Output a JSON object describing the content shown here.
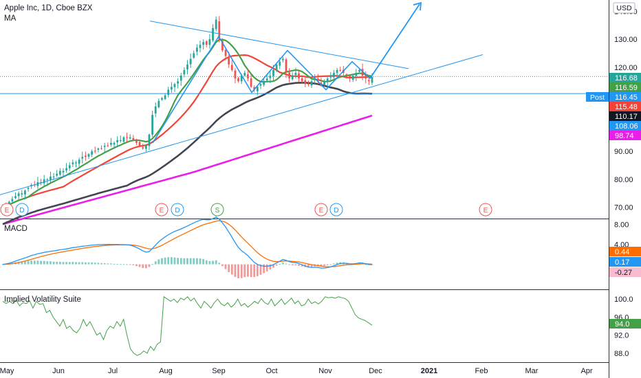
{
  "header": {
    "symbol_title": "Apple Inc, 1D, Cboe BZX",
    "ma_label": "MA",
    "currency": "USD"
  },
  "colors": {
    "up": "#26a69a",
    "down": "#ef5350",
    "ma_green": "#43a047",
    "ma_red": "#f44336",
    "ma_black": "#434651",
    "ma_magenta": "#e91ee9",
    "drawing_blue": "#2196f3",
    "macd_blue": "#2196f3",
    "signal_orange": "#ff6d00",
    "iv_green": "#43a047"
  },
  "chart_data": [
    {
      "type": "candlestick",
      "title": "Apple Inc, 1D, Cboe BZX",
      "pane": "price",
      "x_tick_labels": [
        "May",
        "Jun",
        "Jul",
        "Aug",
        "Sep",
        "Oct",
        "Nov",
        "Dec",
        "2021",
        "Feb",
        "Mar",
        "Apr"
      ],
      "y_tick_labels": [
        "140.00",
        "130.00",
        "120.00",
        "90.00",
        "80.00",
        "70.00"
      ],
      "y_range": [
        66,
        144
      ],
      "close_series": [
        70,
        71,
        72,
        73,
        74,
        75,
        75,
        76,
        77,
        78,
        78,
        79,
        79,
        80,
        80,
        81,
        81,
        82,
        83,
        83,
        84,
        85,
        86,
        86,
        87,
        88,
        88,
        89,
        90,
        90,
        91,
        91,
        92,
        92,
        93,
        93,
        94,
        94,
        95,
        95,
        95,
        94,
        93,
        92,
        91,
        92,
        96,
        103,
        106,
        108,
        109,
        110,
        112,
        113,
        114,
        115,
        117,
        119,
        121,
        123,
        125,
        127,
        128,
        129,
        128,
        130,
        134,
        137,
        130,
        126,
        124,
        121,
        119,
        116,
        115,
        117,
        118,
        116,
        113,
        112,
        113,
        114,
        115,
        116,
        117,
        119,
        121,
        122,
        123,
        118,
        116,
        117,
        118,
        116,
        115,
        114,
        114,
        115,
        116,
        115,
        114,
        115,
        116,
        117,
        118,
        119,
        119,
        118,
        117,
        116,
        117,
        118,
        119,
        117,
        116,
        115,
        116.5
      ],
      "moving_averages": [
        {
          "label_value": "116.59",
          "color": "#43a047"
        },
        {
          "label_value": "115.48",
          "color": "#f44336"
        },
        {
          "label_value": "110.17",
          "color": "#434651"
        },
        {
          "label_value": "98.74",
          "color": "#e91ee9"
        }
      ],
      "price_labels": [
        {
          "value": "116.68",
          "color": "#26a69a"
        },
        {
          "value": "116.59",
          "color": "#43a047"
        },
        {
          "value": "116.45",
          "color": "#2196f3"
        },
        {
          "value": "115.48",
          "color": "#f44336"
        },
        {
          "value": "110.17",
          "color": "#131722"
        },
        {
          "value": "108.06",
          "color": "#2196f3"
        },
        {
          "value": "98.74",
          "color": "#e91ee9"
        }
      ],
      "post_label": "Post",
      "events": [
        {
          "letter": "E",
          "kind": "earnings",
          "color": "#ef5350"
        },
        {
          "letter": "D",
          "kind": "dividend",
          "color": "#2196f3"
        },
        {
          "letter": "E",
          "kind": "earnings",
          "color": "#ef5350"
        },
        {
          "letter": "D",
          "kind": "dividend",
          "color": "#2196f3"
        },
        {
          "letter": "S",
          "kind": "split",
          "color": "#43a047"
        },
        {
          "letter": "E",
          "kind": "earnings",
          "color": "#ef5350"
        },
        {
          "letter": "D",
          "kind": "dividend",
          "color": "#2196f3"
        },
        {
          "letter": "E",
          "kind": "earnings",
          "color": "#ef5350"
        }
      ]
    },
    {
      "type": "line",
      "pane": "macd",
      "title": "MACD",
      "y_tick_labels": [
        "8.00",
        "4.00"
      ],
      "y_range": [
        -5,
        9
      ],
      "value_labels": [
        {
          "value": "0.44",
          "color": "#ff6d00"
        },
        {
          "value": "0.17",
          "color": "#2196f3"
        },
        {
          "value": "-0.27",
          "color": "#ef5350"
        }
      ]
    },
    {
      "type": "line",
      "pane": "implied_volatility",
      "title": "Implied Volatility Suite",
      "y_tick_labels": [
        "100.0",
        "96.0",
        "92.0",
        "88.0"
      ],
      "y_range": [
        86,
        102
      ],
      "current_label": {
        "value": "94.0",
        "color": "#43a047"
      },
      "series": [
        99.5,
        99,
        99.5,
        99,
        99.8,
        98.5,
        99.2,
        99,
        99.6,
        98,
        99.5,
        98.8,
        99,
        97,
        97.5,
        96,
        95,
        94,
        95.5,
        93.5,
        94,
        93,
        92.5,
        93.5,
        95.5,
        94,
        95,
        93.5,
        92,
        92.5,
        91,
        93,
        94,
        93.5,
        95,
        94,
        95.5,
        92,
        89,
        88,
        87.5,
        87.8,
        88.5,
        88,
        89.5,
        88.6,
        90,
        90.5,
        100.5,
        100,
        99.5,
        100,
        99.2,
        100.2,
        99.8,
        100.5,
        99.6,
        100.2,
        99,
        98,
        99.5,
        98.8,
        98,
        99.2,
        100,
        99,
        98.5,
        99.2,
        98.2,
        98.8,
        100,
        98.5,
        99,
        98.2,
        98.8,
        99.5,
        99,
        100.1,
        99.2,
        98.8,
        100,
        98.5,
        99.2,
        100,
        98.8,
        99.5,
        100.2,
        99,
        99.6,
        98.5,
        98.8,
        100,
        99,
        99.4,
        98.9,
        99.5,
        100.5,
        100.3,
        100.4,
        100.2,
        100.5,
        100.3,
        100.1,
        99.5,
        98,
        96.5,
        95.8,
        95.5,
        95.2,
        94.7,
        94.2
      ]
    }
  ]
}
